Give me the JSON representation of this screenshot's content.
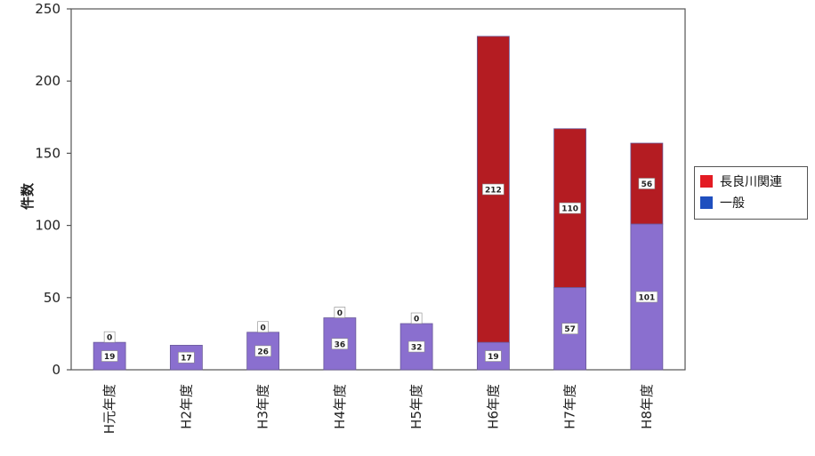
{
  "chart_data": {
    "type": "bar",
    "stacked": true,
    "categories": [
      "H元年度",
      "H2年度",
      "H3年度",
      "H4年度",
      "H5年度",
      "H6年度",
      "H7年度",
      "H8年度"
    ],
    "series": [
      {
        "name": "一般",
        "color": "#8a6fcf",
        "legend_color": "#1f4fbf",
        "values": [
          19,
          17,
          26,
          36,
          32,
          19,
          57,
          101
        ]
      },
      {
        "name": "長良川関連",
        "color": "#b41c22",
        "legend_color": "#e31b23",
        "values": [
          0,
          null,
          0,
          0,
          0,
          212,
          110,
          56
        ]
      }
    ],
    "ylabel": "件数",
    "ylim": [
      0,
      250
    ],
    "yticks": [
      "0",
      "50",
      "100",
      "150",
      "200",
      "250"
    ],
    "legend_position": "right"
  }
}
